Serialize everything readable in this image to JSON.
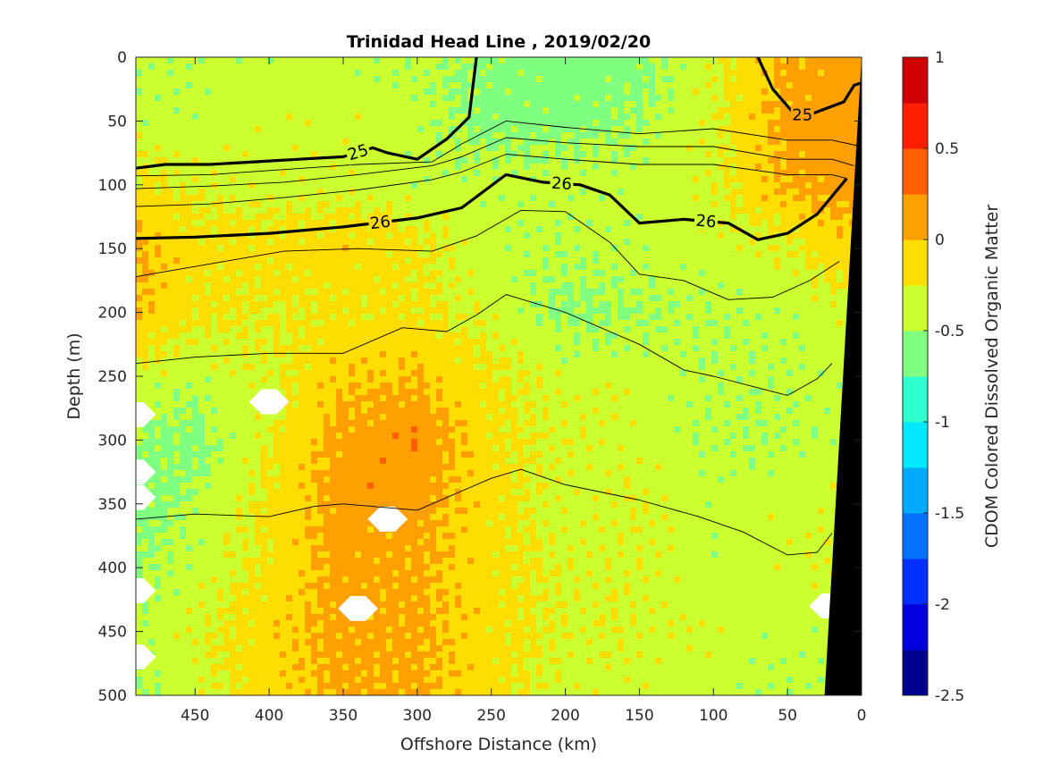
{
  "chart_data": {
    "type": "heatmap",
    "title": "Trinidad Head Line , 2019/02/20",
    "xlabel": "Offshore Distance (km)",
    "ylabel": "Depth (m)",
    "colorbar_label": "CDOM Colored Dissolved Organic Matter",
    "x_axis": {
      "range": [
        490,
        0
      ],
      "reversed": true,
      "ticks": [
        450,
        400,
        350,
        300,
        250,
        200,
        150,
        100,
        50,
        0
      ],
      "tick_labels": [
        "450",
        "400",
        "350",
        "300",
        "250",
        "200",
        "150",
        "100",
        "50",
        "0"
      ]
    },
    "y_axis": {
      "range": [
        0,
        500
      ],
      "reversed": true,
      "ticks": [
        0,
        50,
        100,
        150,
        200,
        250,
        300,
        350,
        400,
        450,
        500
      ],
      "tick_labels": [
        "0",
        "50",
        "100",
        "150",
        "200",
        "250",
        "300",
        "350",
        "400",
        "450",
        "500"
      ]
    },
    "colorbar": {
      "range": [
        -2.5,
        1
      ],
      "levels": [
        -2.5,
        -2.25,
        -2,
        -1.75,
        -1.5,
        -1.25,
        -1,
        -0.75,
        -0.5,
        -0.25,
        0,
        0.25,
        0.5,
        0.75,
        1
      ],
      "tick_values": [
        -2.5,
        -2,
        -1.5,
        -1,
        -0.5,
        0,
        0.5,
        1
      ],
      "tick_labels": [
        "-2.5",
        "-2",
        "-1.5",
        "-1",
        "-0.5",
        "0",
        "0.5",
        "1"
      ],
      "colors": [
        "#00008f",
        "#0000df",
        "#0030ff",
        "#0070ff",
        "#00aaff",
        "#00e8ff",
        "#30ffd0",
        "#80ff80",
        "#ccff30",
        "#ffdd00",
        "#ff9f00",
        "#ff5f00",
        "#ff1f00",
        "#cf0000"
      ]
    },
    "field": {
      "description_levels": "filled contours of CDOM",
      "x": [
        490,
        450,
        400,
        350,
        300,
        250,
        200,
        150,
        100,
        50,
        20
      ],
      "y": [
        0,
        50,
        100,
        150,
        200,
        250,
        300,
        350,
        400,
        450,
        500
      ],
      "values": [
        [
          -0.45,
          -0.4,
          -0.4,
          -0.4,
          -0.45,
          -0.55,
          -0.65,
          -0.6,
          -0.3,
          0.05,
          0.1
        ],
        [
          -0.4,
          -0.4,
          -0.35,
          -0.35,
          -0.4,
          -0.6,
          -0.6,
          -0.5,
          -0.3,
          0.1,
          0.15
        ],
        [
          -0.2,
          -0.3,
          -0.35,
          -0.35,
          -0.4,
          -0.4,
          -0.4,
          -0.4,
          -0.3,
          0.05,
          0.1
        ],
        [
          0.05,
          -0.15,
          -0.15,
          -0.1,
          -0.2,
          -0.4,
          -0.45,
          -0.4,
          -0.35,
          -0.3,
          -0.1
        ],
        [
          0.0,
          -0.2,
          -0.25,
          -0.2,
          -0.2,
          -0.35,
          -0.55,
          -0.5,
          -0.45,
          -0.4,
          -0.35
        ],
        [
          -0.35,
          -0.4,
          -0.3,
          -0.05,
          0.0,
          -0.2,
          -0.35,
          -0.35,
          -0.45,
          -0.45,
          -0.4
        ],
        [
          -0.5,
          -0.6,
          -0.25,
          0.1,
          0.2,
          -0.2,
          -0.3,
          -0.35,
          -0.45,
          -0.45,
          -0.4
        ],
        [
          -0.65,
          -0.45,
          -0.2,
          0.15,
          0.1,
          -0.15,
          -0.35,
          -0.3,
          -0.4,
          -0.35,
          -0.35
        ],
        [
          -0.5,
          -0.4,
          -0.2,
          0.1,
          0.05,
          -0.15,
          -0.3,
          -0.3,
          -0.4,
          -0.35,
          -0.3
        ],
        [
          -0.45,
          -0.3,
          -0.1,
          0.1,
          0.05,
          -0.15,
          -0.3,
          -0.3,
          -0.35,
          -0.4,
          -0.4
        ],
        [
          -0.5,
          -0.35,
          -0.1,
          0.05,
          0.05,
          -0.15,
          -0.35,
          -0.35,
          -0.4,
          -0.45,
          -0.4
        ]
      ]
    },
    "contours": [
      {
        "level": "25",
        "bold": true,
        "labels": [
          "25"
        ],
        "x": [
          490,
          470,
          440,
          410,
          380,
          350,
          330,
          320,
          300,
          280,
          265,
          260
        ],
        "y": [
          87,
          84,
          84,
          82,
          80,
          78,
          71,
          75,
          80,
          64,
          47,
          0
        ]
      },
      {
        "level": "25",
        "bold": true,
        "labels": [
          "25"
        ],
        "x": [
          70,
          60,
          45,
          35,
          12,
          5,
          0
        ],
        "y": [
          0,
          25,
          45,
          45,
          35,
          22,
          20
        ]
      },
      {
        "level": "26",
        "bold": true,
        "labels": [
          "26",
          "26",
          "26"
        ],
        "x": [
          490,
          450,
          400,
          350,
          300,
          270,
          240,
          215,
          190,
          170,
          150,
          120,
          90,
          70,
          50,
          30,
          10
        ],
        "y": [
          142,
          141,
          138,
          133,
          126,
          118,
          92,
          98,
          100,
          108,
          130,
          127,
          130,
          143,
          138,
          123,
          95
        ]
      },
      {
        "level": "",
        "bold": false,
        "x": [
          490,
          440,
          390,
          340,
          290,
          270,
          240,
          200,
          150,
          100,
          50,
          20,
          0
        ],
        "y": [
          93,
          92,
          88,
          84,
          82,
          68,
          50,
          55,
          60,
          56,
          65,
          65,
          70
        ]
      },
      {
        "level": "",
        "bold": false,
        "x": [
          490,
          440,
          390,
          340,
          290,
          270,
          240,
          200,
          150,
          100,
          50,
          20,
          5
        ],
        "y": [
          103,
          101,
          98,
          92,
          85,
          78,
          63,
          67,
          70,
          70,
          80,
          80,
          85
        ]
      },
      {
        "level": "",
        "bold": false,
        "x": [
          490,
          440,
          390,
          340,
          290,
          270,
          240,
          200,
          150,
          100,
          50,
          20,
          10
        ],
        "y": [
          117,
          115,
          110,
          104,
          96,
          90,
          76,
          80,
          84,
          84,
          92,
          92,
          95
        ]
      },
      {
        "level": "",
        "bold": false,
        "x": [
          490,
          440,
          390,
          340,
          290,
          260,
          230,
          200,
          170,
          150,
          120,
          90,
          60,
          35,
          15
        ],
        "y": [
          172,
          162,
          152,
          150,
          152,
          140,
          120,
          121,
          145,
          170,
          175,
          190,
          188,
          175,
          160
        ]
      },
      {
        "level": "",
        "bold": false,
        "x": [
          490,
          450,
          400,
          350,
          310,
          280,
          260,
          240,
          200,
          150,
          120,
          100,
          70,
          50,
          30,
          20
        ],
        "y": [
          240,
          235,
          232,
          232,
          212,
          215,
          202,
          186,
          200,
          225,
          245,
          250,
          259,
          265,
          252,
          240
        ]
      },
      {
        "level": "",
        "bold": false,
        "x": [
          490,
          450,
          400,
          370,
          350,
          300,
          250,
          230,
          200,
          150,
          110,
          80,
          50,
          30,
          20
        ],
        "y": [
          362,
          358,
          360,
          352,
          350,
          355,
          330,
          323,
          335,
          347,
          360,
          372,
          390,
          388,
          373
        ]
      }
    ],
    "bottom_mask": {
      "color": "#000000",
      "x": [
        25,
        0
      ],
      "y_top": [
        500,
        0
      ]
    },
    "missing_points": [
      {
        "x": 400,
        "y": 270
      },
      {
        "x": 320,
        "y": 362
      },
      {
        "x": 340,
        "y": 432
      },
      {
        "x": 490,
        "y": 280
      },
      {
        "x": 490,
        "y": 325
      },
      {
        "x": 490,
        "y": 345
      },
      {
        "x": 490,
        "y": 418
      },
      {
        "x": 490,
        "y": 470
      },
      {
        "x": 22,
        "y": 430
      }
    ]
  }
}
